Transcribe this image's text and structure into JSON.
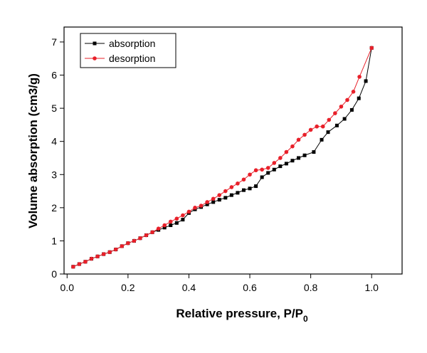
{
  "chart_data": {
    "type": "line",
    "xlabel": [
      "Relative pressure, P/P",
      "0"
    ],
    "ylabel": "Volume absorption (cm3/g)",
    "xlim": [
      -0.01,
      1.1
    ],
    "ylim": [
      0,
      7.45
    ],
    "xticks": [
      {
        "value": 0,
        "label": "0.0"
      },
      0.2,
      0.4,
      0.6,
      0.8,
      {
        "value": 1,
        "label": "1.0"
      }
    ],
    "yticks": [
      0,
      1,
      2,
      3,
      4,
      5,
      6,
      7
    ],
    "legend": "upper left",
    "series": [
      {
        "name": "absorption",
        "color": "#000000",
        "marker": "square",
        "x": [
          0.02,
          0.04,
          0.06,
          0.08,
          0.1,
          0.12,
          0.14,
          0.16,
          0.18,
          0.2,
          0.22,
          0.24,
          0.26,
          0.28,
          0.3,
          0.32,
          0.34,
          0.36,
          0.38,
          0.4,
          0.42,
          0.44,
          0.46,
          0.48,
          0.5,
          0.52,
          0.54,
          0.56,
          0.58,
          0.6,
          0.62,
          0.64,
          0.66,
          0.68,
          0.7,
          0.72,
          0.74,
          0.76,
          0.78,
          0.81,
          0.836,
          0.857,
          0.886,
          0.911,
          0.935,
          0.958,
          0.981,
          1.0
        ],
        "values": [
          0.22,
          0.3,
          0.37,
          0.46,
          0.53,
          0.6,
          0.66,
          0.74,
          0.84,
          0.93,
          1.0,
          1.08,
          1.17,
          1.26,
          1.33,
          1.4,
          1.47,
          1.54,
          1.64,
          1.84,
          1.95,
          2.02,
          2.1,
          2.17,
          2.24,
          2.3,
          2.38,
          2.45,
          2.53,
          2.58,
          2.65,
          2.92,
          3.05,
          3.15,
          3.25,
          3.33,
          3.42,
          3.5,
          3.58,
          3.68,
          4.05,
          4.28,
          4.48,
          4.68,
          4.95,
          5.3,
          5.82,
          6.82
        ]
      },
      {
        "name": "desorption",
        "color": "#e8202a",
        "marker": "circle",
        "x": [
          0.02,
          0.04,
          0.06,
          0.08,
          0.1,
          0.12,
          0.14,
          0.16,
          0.18,
          0.2,
          0.22,
          0.24,
          0.26,
          0.28,
          0.3,
          0.32,
          0.34,
          0.36,
          0.38,
          0.4,
          0.42,
          0.44,
          0.46,
          0.48,
          0.5,
          0.52,
          0.54,
          0.56,
          0.58,
          0.6,
          0.62,
          0.64,
          0.66,
          0.68,
          0.7,
          0.72,
          0.74,
          0.76,
          0.78,
          0.8,
          0.82,
          0.84,
          0.86,
          0.88,
          0.9,
          0.92,
          0.94,
          0.96,
          1.0
        ],
        "values": [
          0.22,
          0.3,
          0.37,
          0.46,
          0.53,
          0.6,
          0.66,
          0.74,
          0.84,
          0.93,
          1.0,
          1.08,
          1.17,
          1.26,
          1.37,
          1.47,
          1.58,
          1.67,
          1.77,
          1.88,
          2.0,
          2.06,
          2.17,
          2.27,
          2.38,
          2.5,
          2.62,
          2.73,
          2.85,
          3.0,
          3.13,
          3.15,
          3.2,
          3.35,
          3.5,
          3.68,
          3.85,
          4.05,
          4.2,
          4.35,
          4.45,
          4.45,
          4.65,
          4.85,
          5.05,
          5.25,
          5.5,
          5.95,
          6.82
        ]
      }
    ]
  }
}
